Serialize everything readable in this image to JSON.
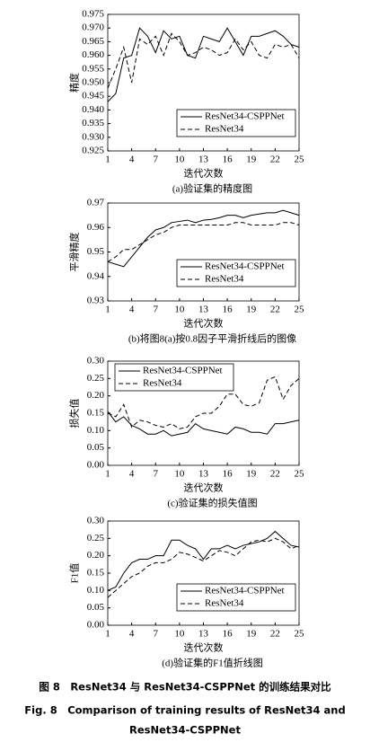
{
  "chart_data": [
    {
      "type": "line",
      "x_label": "迭代次数",
      "y_label": "精度",
      "subcaption": "(a)验证集的精度图",
      "x": [
        1,
        2,
        3,
        4,
        5,
        6,
        7,
        8,
        9,
        10,
        11,
        12,
        13,
        14,
        15,
        16,
        17,
        18,
        19,
        20,
        21,
        22,
        23,
        24,
        25
      ],
      "xlim": [
        1,
        25
      ],
      "xticks": [
        1,
        4,
        7,
        10,
        13,
        16,
        19,
        22,
        25
      ],
      "ylim": [
        0.925,
        0.975
      ],
      "yticks": [
        0.975,
        {
          "value": 0.97,
          "label": "0.970"
        },
        0.965,
        {
          "value": 0.96,
          "label": "0.960"
        },
        0.955,
        {
          "value": 0.95,
          "label": "0.950"
        },
        0.945,
        {
          "value": 0.94,
          "label": "0.940"
        },
        0.935,
        {
          "value": 0.93,
          "label": "0.930"
        },
        0.925
      ],
      "legend": "lower right",
      "series": [
        {
          "name": "ResNet34-CSPPNet",
          "color": "#000",
          "dash": false,
          "values": [
            0.943,
            0.946,
            0.959,
            0.96,
            0.97,
            0.967,
            0.961,
            0.969,
            0.966,
            0.967,
            0.96,
            0.959,
            0.967,
            0.966,
            0.965,
            0.97,
            0.965,
            0.96,
            0.967,
            0.967,
            0.968,
            0.969,
            0.967,
            0.964,
            0.963
          ]
        },
        {
          "name": "ResNet34",
          "color": "#000",
          "dash": true,
          "values": [
            0.948,
            0.955,
            0.963,
            0.95,
            0.966,
            0.964,
            0.967,
            0.96,
            0.968,
            0.965,
            0.96,
            0.961,
            0.963,
            0.962,
            0.96,
            0.961,
            0.966,
            0.962,
            0.965,
            0.96,
            0.959,
            0.964,
            0.963,
            0.964,
            0.959
          ]
        }
      ]
    },
    {
      "type": "line",
      "x_label": "迭代次数",
      "y_label": "平滑精度",
      "subcaption": "(b)将图8(a)按0.8因子平滑折线后的图像",
      "x": [
        1,
        2,
        3,
        4,
        5,
        6,
        7,
        8,
        9,
        10,
        11,
        12,
        13,
        14,
        15,
        16,
        17,
        18,
        19,
        20,
        21,
        22,
        23,
        24,
        25
      ],
      "xlim": [
        1,
        25
      ],
      "xticks": [
        1,
        4,
        7,
        10,
        13,
        16,
        19,
        22,
        25
      ],
      "ylim": [
        0.93,
        0.97
      ],
      "yticks": [
        0.97,
        0.96,
        0.95,
        0.94,
        0.93
      ],
      "legend": "lower right",
      "series": [
        {
          "name": "ResNet34-CSPPNet",
          "color": "#000",
          "dash": false,
          "values": [
            0.946,
            0.945,
            0.944,
            0.948,
            0.952,
            0.956,
            0.959,
            0.96,
            0.962,
            0.9625,
            0.963,
            0.962,
            0.963,
            0.9633,
            0.964,
            0.965,
            0.965,
            0.964,
            0.965,
            0.9655,
            0.966,
            0.966,
            0.967,
            0.966,
            0.965
          ]
        },
        {
          "name": "ResNet34",
          "color": "#000",
          "dash": true,
          "values": [
            0.946,
            0.948,
            0.951,
            0.951,
            0.953,
            0.955,
            0.957,
            0.958,
            0.96,
            0.961,
            0.961,
            0.961,
            0.961,
            0.961,
            0.961,
            0.961,
            0.962,
            0.962,
            0.961,
            0.961,
            0.961,
            0.961,
            0.962,
            0.962,
            0.961
          ]
        }
      ]
    },
    {
      "type": "line",
      "x_label": "迭代次数",
      "y_label": "损失值",
      "subcaption": "(c)验证集的损失值图",
      "x": [
        1,
        2,
        3,
        4,
        5,
        6,
        7,
        8,
        9,
        10,
        11,
        12,
        13,
        14,
        15,
        16,
        17,
        18,
        19,
        20,
        21,
        22,
        23,
        24,
        25
      ],
      "xlim": [
        1,
        25
      ],
      "xticks": [
        1,
        4,
        7,
        10,
        13,
        16,
        19,
        22,
        25
      ],
      "ylim": [
        0,
        0.3
      ],
      "yticks": [
        {
          "value": 0.3,
          "label": "0.30"
        },
        0.25,
        {
          "value": 0.2,
          "label": "0.20"
        },
        0.15,
        {
          "value": 0.1,
          "label": "0.10"
        },
        0.05,
        {
          "value": 0,
          "label": "0.00"
        }
      ],
      "legend": "upper left",
      "series": [
        {
          "name": "ResNet34-CSPPNet",
          "color": "#000",
          "dash": false,
          "values": [
            0.155,
            0.125,
            0.14,
            0.115,
            0.105,
            0.09,
            0.09,
            0.1,
            0.085,
            0.09,
            0.095,
            0.12,
            0.105,
            0.1,
            0.095,
            0.09,
            0.11,
            0.105,
            0.095,
            0.095,
            0.09,
            0.12,
            0.12,
            0.125,
            0.13
          ]
        },
        {
          "name": "ResNet34",
          "color": "#000",
          "dash": true,
          "values": [
            0.15,
            0.14,
            0.175,
            0.11,
            0.13,
            0.125,
            0.115,
            0.11,
            0.12,
            0.105,
            0.11,
            0.14,
            0.15,
            0.15,
            0.17,
            0.205,
            0.205,
            0.175,
            0.17,
            0.18,
            0.245,
            0.255,
            0.19,
            0.23,
            0.25
          ]
        }
      ]
    },
    {
      "type": "line",
      "x_label": "迭代次数",
      "y_label": "F1值",
      "subcaption": "(d)验证集的F1值折线图",
      "x": [
        1,
        2,
        3,
        4,
        5,
        6,
        7,
        8,
        9,
        10,
        11,
        12,
        13,
        14,
        15,
        16,
        17,
        18,
        19,
        20,
        21,
        22,
        23,
        24,
        25
      ],
      "xlim": [
        1,
        25
      ],
      "xticks": [
        1,
        4,
        7,
        10,
        13,
        16,
        19,
        22,
        25
      ],
      "ylim": [
        0,
        0.3
      ],
      "yticks": [
        {
          "value": 0.3,
          "label": "0.30"
        },
        0.25,
        {
          "value": 0.2,
          "label": "0.20"
        },
        0.15,
        {
          "value": 0.1,
          "label": "0.10"
        },
        0.05,
        {
          "value": 0,
          "label": "0.00"
        }
      ],
      "legend": "lower right",
      "series": [
        {
          "name": "ResNet34-CSPPNet",
          "color": "#000",
          "dash": false,
          "values": [
            0.1,
            0.11,
            0.15,
            0.18,
            0.19,
            0.19,
            0.2,
            0.2,
            0.245,
            0.245,
            0.23,
            0.22,
            0.19,
            0.22,
            0.22,
            0.23,
            0.22,
            0.23,
            0.235,
            0.24,
            0.25,
            0.27,
            0.25,
            0.23,
            0.225
          ]
        },
        {
          "name": "ResNet34",
          "color": "#000",
          "dash": true,
          "values": [
            0.08,
            0.1,
            0.12,
            0.14,
            0.15,
            0.17,
            0.18,
            0.18,
            0.19,
            0.21,
            0.205,
            0.195,
            0.185,
            0.2,
            0.215,
            0.21,
            0.2,
            0.22,
            0.24,
            0.245,
            0.24,
            0.25,
            0.24,
            0.22,
            0.23
          ]
        }
      ]
    }
  ],
  "figure_caption": {
    "zh": "图 8　ResNet34 与 ResNet34-CSPPNet 的训练结果对比",
    "en": [
      "Fig. 8　Comparison of training results of ResNet34 and",
      "ResNet34-CSPPNet"
    ]
  }
}
